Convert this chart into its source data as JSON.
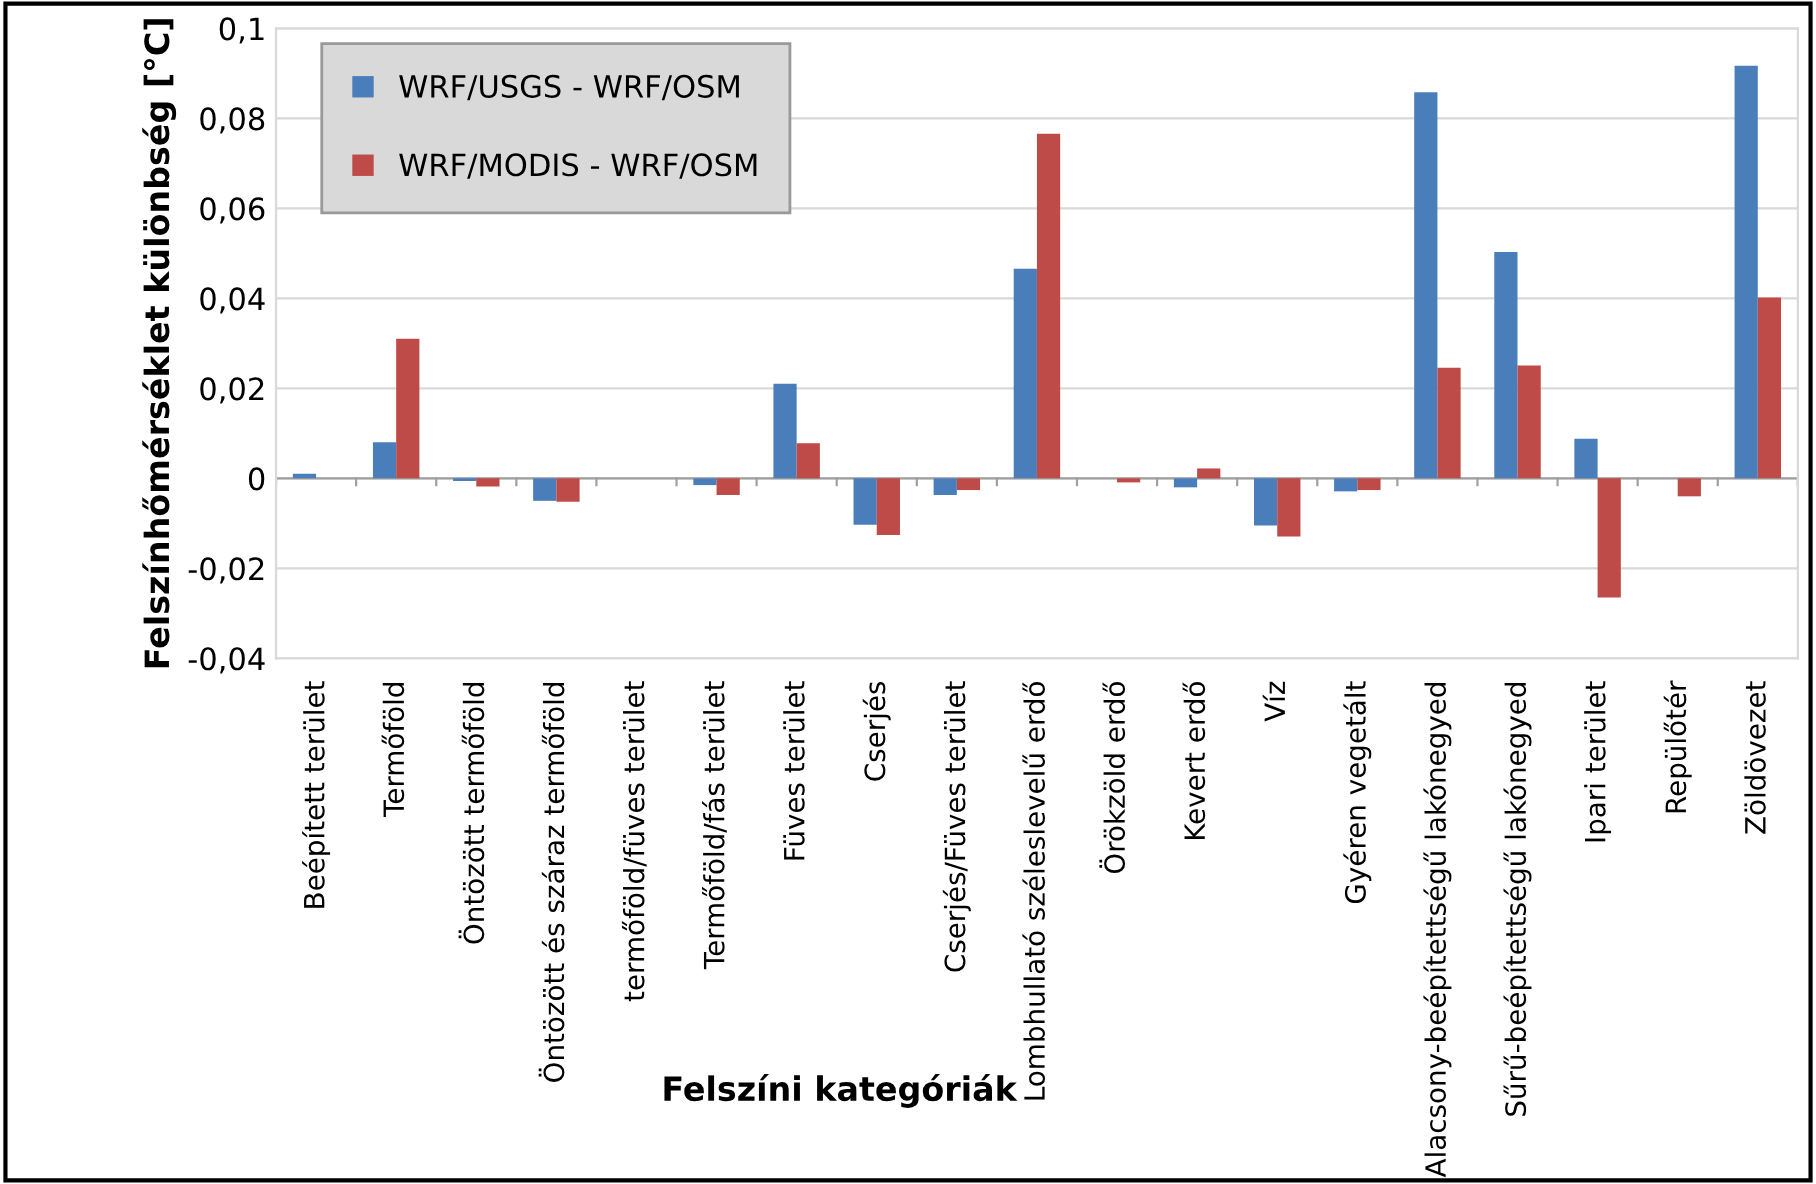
{
  "chart_data": {
    "type": "bar",
    "xlabel": "Felszíni kategóriák",
    "ylabel": "Felszínhőmérséklet különbség [°C]",
    "categories": [
      "Beépített terület",
      "Termőföld",
      "Öntözött termőföld",
      "Öntözött és száraz termőföld",
      "termőföld/füves terület",
      "Termőföld/fás terület",
      "Füves terület",
      "Cserjés",
      "Cserjés/Füves terület",
      "Lombhullató széleslevelű erdő",
      "Örökzöld erdő",
      "Kevert erdő",
      "Víz",
      "Gyéren vegetált",
      "Alacsony-beépítettségű lakónegyed",
      "Sűrű-beépítettségű lakónegyed",
      "Ipari terület",
      "Repülőtér",
      "Zöldövezet"
    ],
    "series": [
      {
        "name": "WRF/USGS - WRF/OSM",
        "color": "#4a7ebb",
        "values": [
          0.001,
          0.008,
          -0.0006,
          -0.005,
          0,
          -0.0015,
          0.021,
          -0.0103,
          -0.0037,
          0.0466,
          0,
          -0.002,
          -0.0105,
          -0.0029,
          0.0858,
          0.0503,
          0.0088,
          0,
          0.0917
        ]
      },
      {
        "name": "WRF/MODIS - WRF/OSM",
        "color": "#be4b48",
        "values": [
          0,
          0.031,
          -0.0018,
          -0.0052,
          0,
          -0.0037,
          0.0078,
          -0.0126,
          -0.0026,
          0.0766,
          -0.0009,
          0.0022,
          -0.0129,
          -0.0026,
          0.0246,
          0.0251,
          -0.0265,
          -0.004,
          0.0402
        ]
      }
    ],
    "ylim": [
      -0.04,
      0.1
    ],
    "yticks": [
      {
        "value": -0.04,
        "label": "-0,04"
      },
      {
        "value": -0.02,
        "label": "-0,02"
      },
      0,
      {
        "value": 0.02,
        "label": "0,02"
      },
      {
        "value": 0.04,
        "label": "0,04"
      },
      {
        "value": 0.06,
        "label": "0,06"
      },
      {
        "value": 0.08,
        "label": "0,08"
      },
      {
        "value": 0.1,
        "label": "0,1"
      }
    ],
    "grid": "y",
    "legend": "top left"
  }
}
